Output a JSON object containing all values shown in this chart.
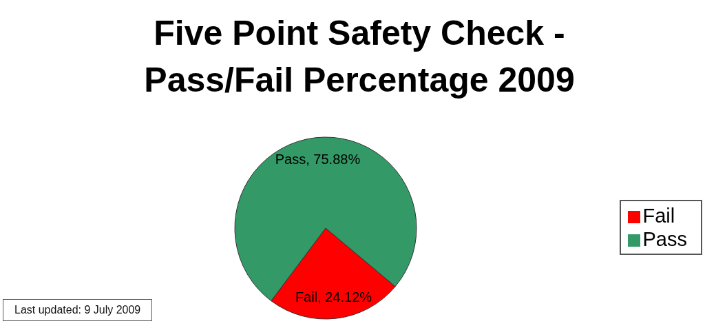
{
  "chart_data": {
    "type": "pie",
    "title": "Five Point Safety Check - Pass/Fail Percentage 2009",
    "categories": [
      "Fail",
      "Pass"
    ],
    "values": [
      24.12,
      75.88
    ],
    "colors": [
      "#ff0000",
      "#339966"
    ],
    "value_labels": [
      "Fail, 24.12%",
      "Pass, 75.88%"
    ],
    "legend": "right",
    "annotations": [
      "Last updated: 9 July 2009"
    ]
  }
}
